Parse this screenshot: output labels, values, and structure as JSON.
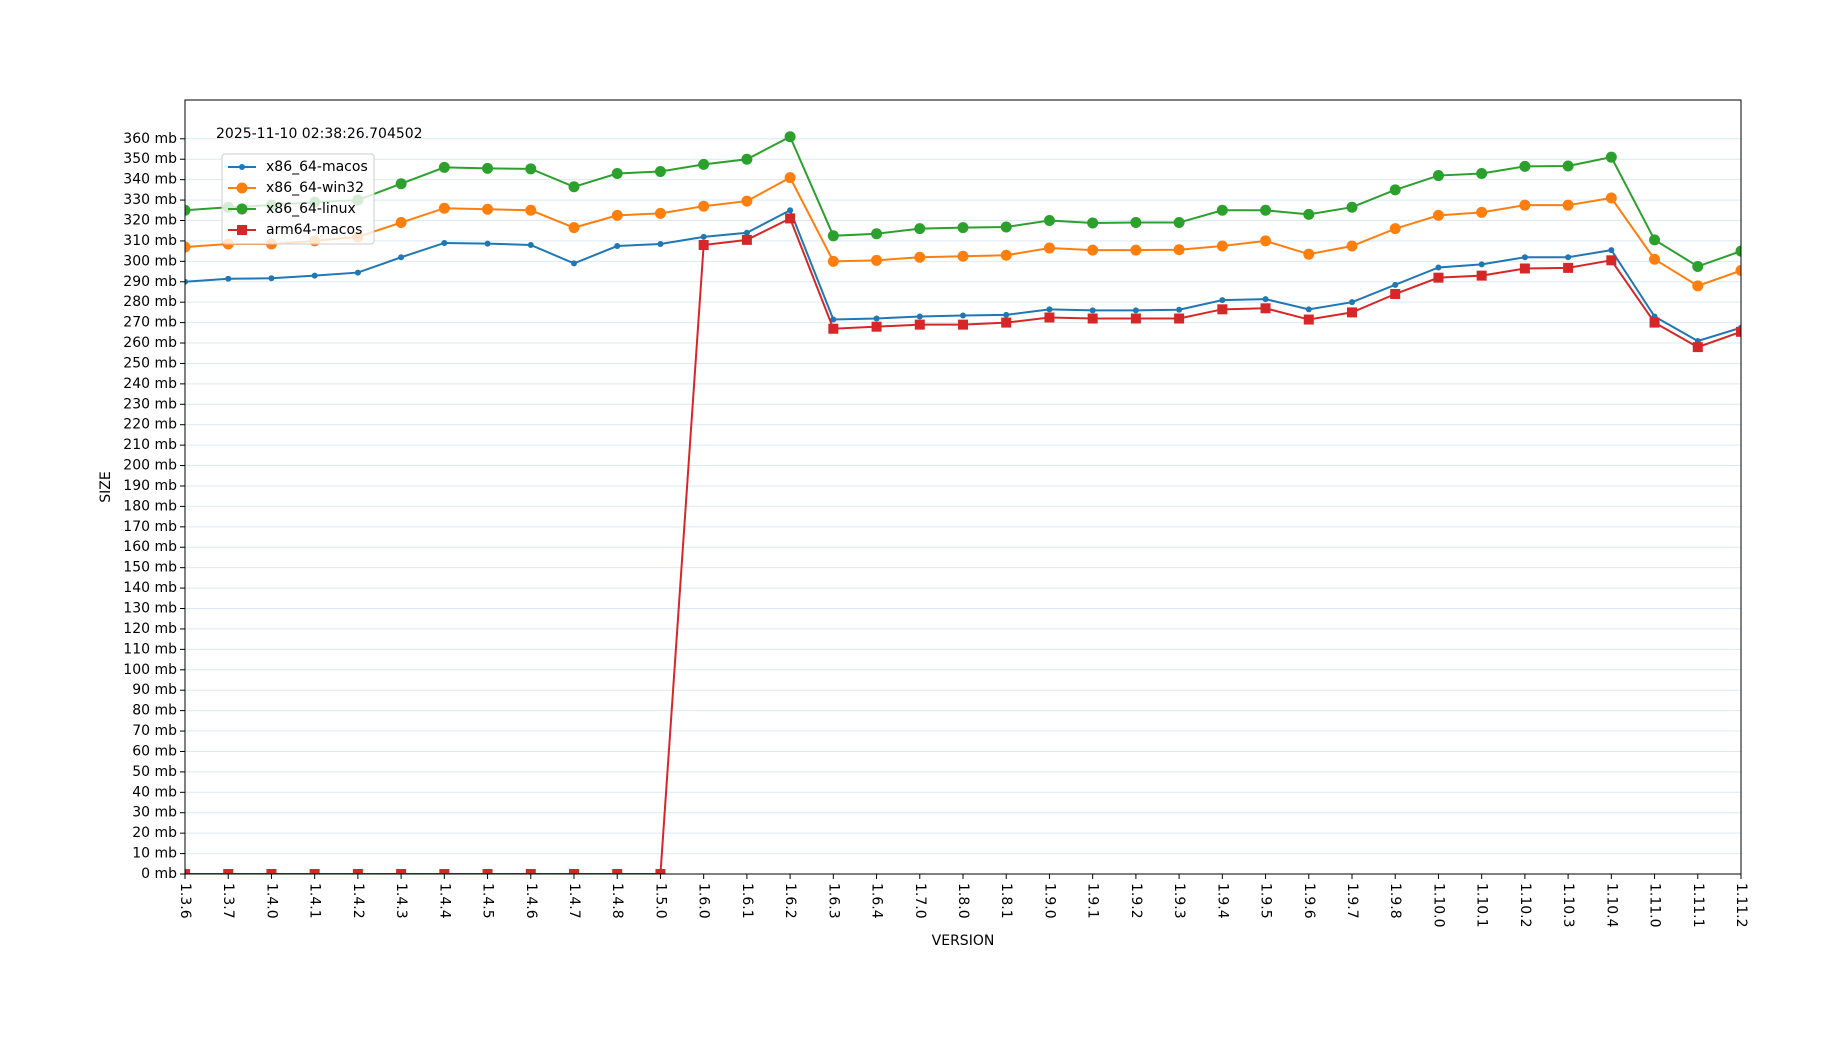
{
  "chart_data": {
    "type": "line",
    "annotation": "2025-11-10 02:38:26.704502",
    "x_label": "VERSION",
    "y_label": "SIZE",
    "categories": [
      "1.3.6",
      "1.3.7",
      "1.4.0",
      "1.4.1",
      "1.4.2",
      "1.4.3",
      "1.4.4",
      "1.4.5",
      "1.4.6",
      "1.4.7",
      "1.4.8",
      "1.5.0",
      "1.6.0",
      "1.6.1",
      "1.6.2",
      "1.6.3",
      "1.6.4",
      "1.7.0",
      "1.8.0",
      "1.8.1",
      "1.9.0",
      "1.9.1",
      "1.9.2",
      "1.9.3",
      "1.9.4",
      "1.9.5",
      "1.9.6",
      "1.9.7",
      "1.9.8",
      "1.10.0",
      "1.10.1",
      "1.10.2",
      "1.10.3",
      "1.10.4",
      "1.11.0",
      "1.11.1",
      "1.11.2"
    ],
    "series": [
      {
        "name": "x86_64-macos",
        "color": "#1f77b4",
        "marker": "dot",
        "values": [
          290,
          291.5,
          291.7,
          293,
          294.5,
          302,
          309,
          308.7,
          308,
          299,
          307.5,
          308.5,
          312,
          314,
          325,
          271.5,
          272,
          273,
          273.5,
          273.8,
          276.5,
          276,
          276,
          276.3,
          281,
          281.5,
          276.5,
          280,
          288.5,
          297,
          298.5,
          302,
          302,
          305.5,
          273,
          261,
          267.5
        ]
      },
      {
        "name": "x86_64-win32",
        "color": "#ff7f0e",
        "marker": "circle",
        "values": [
          307,
          308.5,
          308.5,
          310,
          312,
          319,
          326,
          325.5,
          325,
          316.5,
          322.5,
          323.5,
          327,
          329.5,
          341,
          300,
          300.5,
          302,
          302.5,
          303,
          306.5,
          305.5,
          305.5,
          305.7,
          307.5,
          310,
          303.5,
          307.5,
          316,
          322.5,
          324,
          327.5,
          327.5,
          331,
          301,
          288,
          295.5
        ]
      },
      {
        "name": "x86_64-linux",
        "color": "#2ca02c",
        "marker": "circle",
        "values": [
          325,
          326.5,
          327.5,
          329,
          330,
          338,
          346,
          345.5,
          345.3,
          336.5,
          343,
          344,
          347.5,
          350,
          361,
          312.5,
          313.5,
          316,
          316.5,
          316.8,
          320,
          318.8,
          319,
          319,
          325,
          325,
          323,
          326.5,
          335,
          342,
          343,
          346.5,
          346.7,
          351,
          310.5,
          297.5,
          305
        ]
      },
      {
        "name": "arm64-macos",
        "color": "#d62728",
        "marker": "square",
        "values": [
          0,
          0,
          0,
          0,
          0,
          0,
          0,
          0,
          0,
          0,
          0,
          0,
          308,
          310.5,
          321,
          267,
          268,
          269,
          269,
          270,
          272.5,
          272,
          272,
          272,
          276.5,
          277,
          271.5,
          275,
          284,
          292,
          293,
          296.5,
          296.8,
          300.5,
          270,
          258,
          265.5
        ]
      }
    ],
    "ylim": [
      0,
      379
    ],
    "yticks": [
      {
        "value": 0,
        "label": "0 mb"
      },
      {
        "value": 10,
        "label": "10 mb"
      },
      {
        "value": 20,
        "label": "20 mb"
      },
      {
        "value": 30,
        "label": "30 mb"
      },
      {
        "value": 40,
        "label": "40 mb"
      },
      {
        "value": 50,
        "label": "50 mb"
      },
      {
        "value": 60,
        "label": "60 mb"
      },
      {
        "value": 70,
        "label": "70 mb"
      },
      {
        "value": 80,
        "label": "80 mb"
      },
      {
        "value": 90,
        "label": "90 mb"
      },
      {
        "value": 100,
        "label": "100 mb"
      },
      {
        "value": 110,
        "label": "110 mb"
      },
      {
        "value": 120,
        "label": "120 mb"
      },
      {
        "value": 130,
        "label": "130 mb"
      },
      {
        "value": 140,
        "label": "140 mb"
      },
      {
        "value": 150,
        "label": "150 mb"
      },
      {
        "value": 160,
        "label": "160 mb"
      },
      {
        "value": 170,
        "label": "170 mb"
      },
      {
        "value": 180,
        "label": "180 mb"
      },
      {
        "value": 190,
        "label": "190 mb"
      },
      {
        "value": 200,
        "label": "200 mb"
      },
      {
        "value": 210,
        "label": "210 mb"
      },
      {
        "value": 220,
        "label": "220 mb"
      },
      {
        "value": 230,
        "label": "230 mb"
      },
      {
        "value": 240,
        "label": "240 mb"
      },
      {
        "value": 250,
        "label": "250 mb"
      },
      {
        "value": 260,
        "label": "260 mb"
      },
      {
        "value": 270,
        "label": "270 mb"
      },
      {
        "value": 280,
        "label": "280 mb"
      },
      {
        "value": 290,
        "label": "290 mb"
      },
      {
        "value": 300,
        "label": "300 mb"
      },
      {
        "value": 310,
        "label": "310 mb"
      },
      {
        "value": 320,
        "label": "320 mb"
      },
      {
        "value": 330,
        "label": "330 mb"
      },
      {
        "value": 340,
        "label": "340 mb"
      },
      {
        "value": 350,
        "label": "350 mb"
      },
      {
        "value": 360,
        "label": "360 mb"
      }
    ],
    "grid": true,
    "legend": "upper left"
  }
}
